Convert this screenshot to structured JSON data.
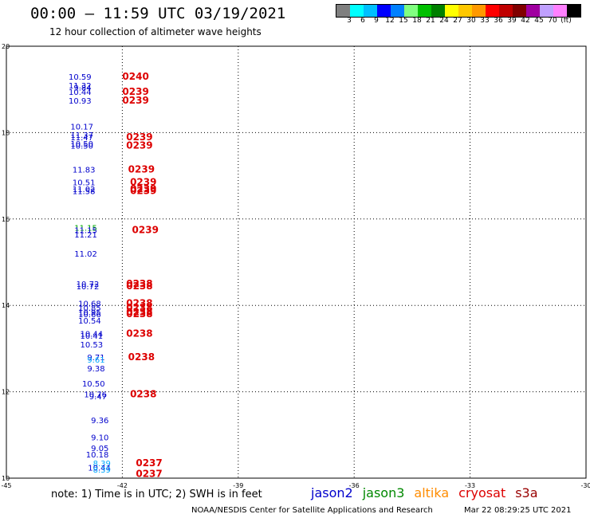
{
  "header": {
    "title": "00:00 – 11:59 UTC 03/19/2021",
    "subtitle": "12 hour collection of altimeter wave heights"
  },
  "colorbar": {
    "colors": [
      "#7f7f7f",
      "#00ffff",
      "#00bfff",
      "#0000ff",
      "#0080ff",
      "#80ff80",
      "#00c000",
      "#008000",
      "#ffff00",
      "#ffc800",
      "#ff9900",
      "#ff0000",
      "#c00000",
      "#800000",
      "#a000a0",
      "#c0a0ff",
      "#ff80ff",
      "#000000"
    ],
    "labels": [
      "3",
      "6",
      "9",
      "12",
      "15",
      "18",
      "21",
      "24",
      "27",
      "30",
      "33",
      "36",
      "39",
      "42",
      "45",
      "70",
      "(ft)"
    ]
  },
  "chart_data": {
    "type": "scatter",
    "xlim": [
      -45,
      -30
    ],
    "ylim": [
      10,
      20
    ],
    "x_ticks": [
      "-45",
      "-42",
      "-39",
      "-36",
      "-33",
      "-30"
    ],
    "y_ticks": [
      "10",
      "12",
      "14",
      "16",
      "18",
      "20"
    ],
    "grid": true,
    "swh_points": [
      {
        "x": -42.8,
        "y": 19.3,
        "label": "10.59",
        "color": "#0000cc"
      },
      {
        "x": -42.8,
        "y": 19.1,
        "label": "11.32",
        "color": "#0000cc"
      },
      {
        "x": -42.8,
        "y": 19.05,
        "label": "9.84",
        "color": "#0000cc"
      },
      {
        "x": -42.8,
        "y": 18.95,
        "label": "10.44",
        "color": "#0000cc"
      },
      {
        "x": -42.8,
        "y": 18.75,
        "label": "10.93",
        "color": "#0000cc"
      },
      {
        "x": -42.75,
        "y": 18.15,
        "label": "10.17",
        "color": "#0000cc"
      },
      {
        "x": -42.75,
        "y": 17.95,
        "label": "11.37",
        "color": "#0000cc"
      },
      {
        "x": -42.75,
        "y": 17.9,
        "label": "11.47",
        "color": "#0000cc"
      },
      {
        "x": -42.75,
        "y": 17.75,
        "label": "10.50",
        "color": "#0000cc"
      },
      {
        "x": -42.75,
        "y": 17.7,
        "label": "10.50",
        "color": "#0000cc"
      },
      {
        "x": -42.7,
        "y": 17.15,
        "label": "11.83",
        "color": "#0000cc"
      },
      {
        "x": -42.7,
        "y": 16.85,
        "label": "10.51",
        "color": "#0000cc"
      },
      {
        "x": -42.7,
        "y": 16.7,
        "label": "11.02",
        "color": "#0000cc"
      },
      {
        "x": -42.7,
        "y": 16.65,
        "label": "11.58",
        "color": "#0000cc"
      },
      {
        "x": -42.65,
        "y": 15.8,
        "label": "11.15",
        "color": "#00aa00"
      },
      {
        "x": -42.65,
        "y": 15.75,
        "label": "11.15",
        "color": "#0000cc"
      },
      {
        "x": -42.65,
        "y": 15.65,
        "label": "11.21",
        "color": "#0000cc"
      },
      {
        "x": -42.65,
        "y": 15.2,
        "label": "11.02",
        "color": "#0000cc"
      },
      {
        "x": -42.6,
        "y": 14.5,
        "label": "10.72",
        "color": "#0000cc"
      },
      {
        "x": -42.6,
        "y": 14.45,
        "label": "10.72",
        "color": "#0000cc"
      },
      {
        "x": -42.55,
        "y": 14.05,
        "label": "10.68",
        "color": "#0000cc"
      },
      {
        "x": -42.55,
        "y": 13.95,
        "label": "10.85",
        "color": "#0000cc"
      },
      {
        "x": -42.55,
        "y": 13.85,
        "label": "10.95",
        "color": "#0000cc"
      },
      {
        "x": -42.55,
        "y": 13.8,
        "label": "10.66",
        "color": "#0000cc"
      },
      {
        "x": -42.55,
        "y": 13.65,
        "label": "10.54",
        "color": "#0000cc"
      },
      {
        "x": -42.5,
        "y": 13.35,
        "label": "10.44",
        "color": "#0000cc"
      },
      {
        "x": -42.5,
        "y": 13.3,
        "label": "10.41",
        "color": "#0000cc"
      },
      {
        "x": -42.5,
        "y": 13.1,
        "label": "10.53",
        "color": "#0000cc"
      },
      {
        "x": -42.45,
        "y": 12.8,
        "label": "9.71",
        "color": "#0000cc"
      },
      {
        "x": -42.45,
        "y": 12.75,
        "label": "9.61",
        "color": "#00aaff"
      },
      {
        "x": -42.45,
        "y": 12.55,
        "label": "9.38",
        "color": "#0000cc"
      },
      {
        "x": -42.45,
        "y": 12.2,
        "label": "10.50",
        "color": "#0000cc"
      },
      {
        "x": -42.4,
        "y": 11.95,
        "label": "10.76",
        "color": "#0000cc"
      },
      {
        "x": -42.4,
        "y": 11.9,
        "label": "9.47",
        "color": "#0000cc"
      },
      {
        "x": -42.35,
        "y": 11.35,
        "label": "9.36",
        "color": "#0000cc"
      },
      {
        "x": -42.35,
        "y": 10.95,
        "label": "9.10",
        "color": "#0000cc"
      },
      {
        "x": -42.35,
        "y": 10.7,
        "label": "9.05",
        "color": "#0000cc"
      },
      {
        "x": -42.35,
        "y": 10.55,
        "label": "10.18",
        "color": "#0000cc"
      },
      {
        "x": -42.3,
        "y": 10.35,
        "label": "8.39",
        "color": "#00aaff"
      },
      {
        "x": -42.3,
        "y": 10.25,
        "label": "10.44",
        "color": "#0000cc"
      },
      {
        "x": -42.3,
        "y": 10.2,
        "label": "8.39",
        "color": "#00aaff"
      }
    ],
    "time_points": [
      {
        "x": -42.0,
        "y": 19.3,
        "label": "0240"
      },
      {
        "x": -42.0,
        "y": 18.95,
        "label": "0239"
      },
      {
        "x": -42.0,
        "y": 18.75,
        "label": "0239"
      },
      {
        "x": -41.9,
        "y": 17.9,
        "label": "0239"
      },
      {
        "x": -41.9,
        "y": 17.7,
        "label": "0239"
      },
      {
        "x": -41.85,
        "y": 17.15,
        "label": "0239"
      },
      {
        "x": -41.8,
        "y": 16.85,
        "label": "0239"
      },
      {
        "x": -41.8,
        "y": 16.7,
        "label": "0239"
      },
      {
        "x": -41.8,
        "y": 16.65,
        "label": "0239"
      },
      {
        "x": -41.75,
        "y": 15.75,
        "label": "0239"
      },
      {
        "x": -41.9,
        "y": 14.5,
        "label": "0238"
      },
      {
        "x": -41.9,
        "y": 14.45,
        "label": "0238"
      },
      {
        "x": -41.9,
        "y": 14.05,
        "label": "0238"
      },
      {
        "x": -41.9,
        "y": 13.95,
        "label": "0238"
      },
      {
        "x": -41.9,
        "y": 13.85,
        "label": "0238"
      },
      {
        "x": -41.9,
        "y": 13.8,
        "label": "0238"
      },
      {
        "x": -41.9,
        "y": 13.35,
        "label": "0238"
      },
      {
        "x": -41.85,
        "y": 12.8,
        "label": "0238"
      },
      {
        "x": -41.8,
        "y": 11.95,
        "label": "0238"
      },
      {
        "x": -41.65,
        "y": 10.35,
        "label": "0237"
      },
      {
        "x": -41.65,
        "y": 10.1,
        "label": "0237"
      }
    ]
  },
  "note": "note: 1) Time is in UTC; 2) SWH is in feet",
  "legend": [
    {
      "name": "jason2",
      "color": "#0000cc"
    },
    {
      "name": "jason3",
      "color": "#008800"
    },
    {
      "name": "altika",
      "color": "#ff8c00"
    },
    {
      "name": "cryosat",
      "color": "#dd0000"
    },
    {
      "name": "s3a",
      "color": "#990000"
    }
  ],
  "footer": {
    "credit": "NOAA/NESDIS Center for Satellite Applications and Research",
    "timestamp": "Mar 22 08:29:25 UTC 2021"
  }
}
